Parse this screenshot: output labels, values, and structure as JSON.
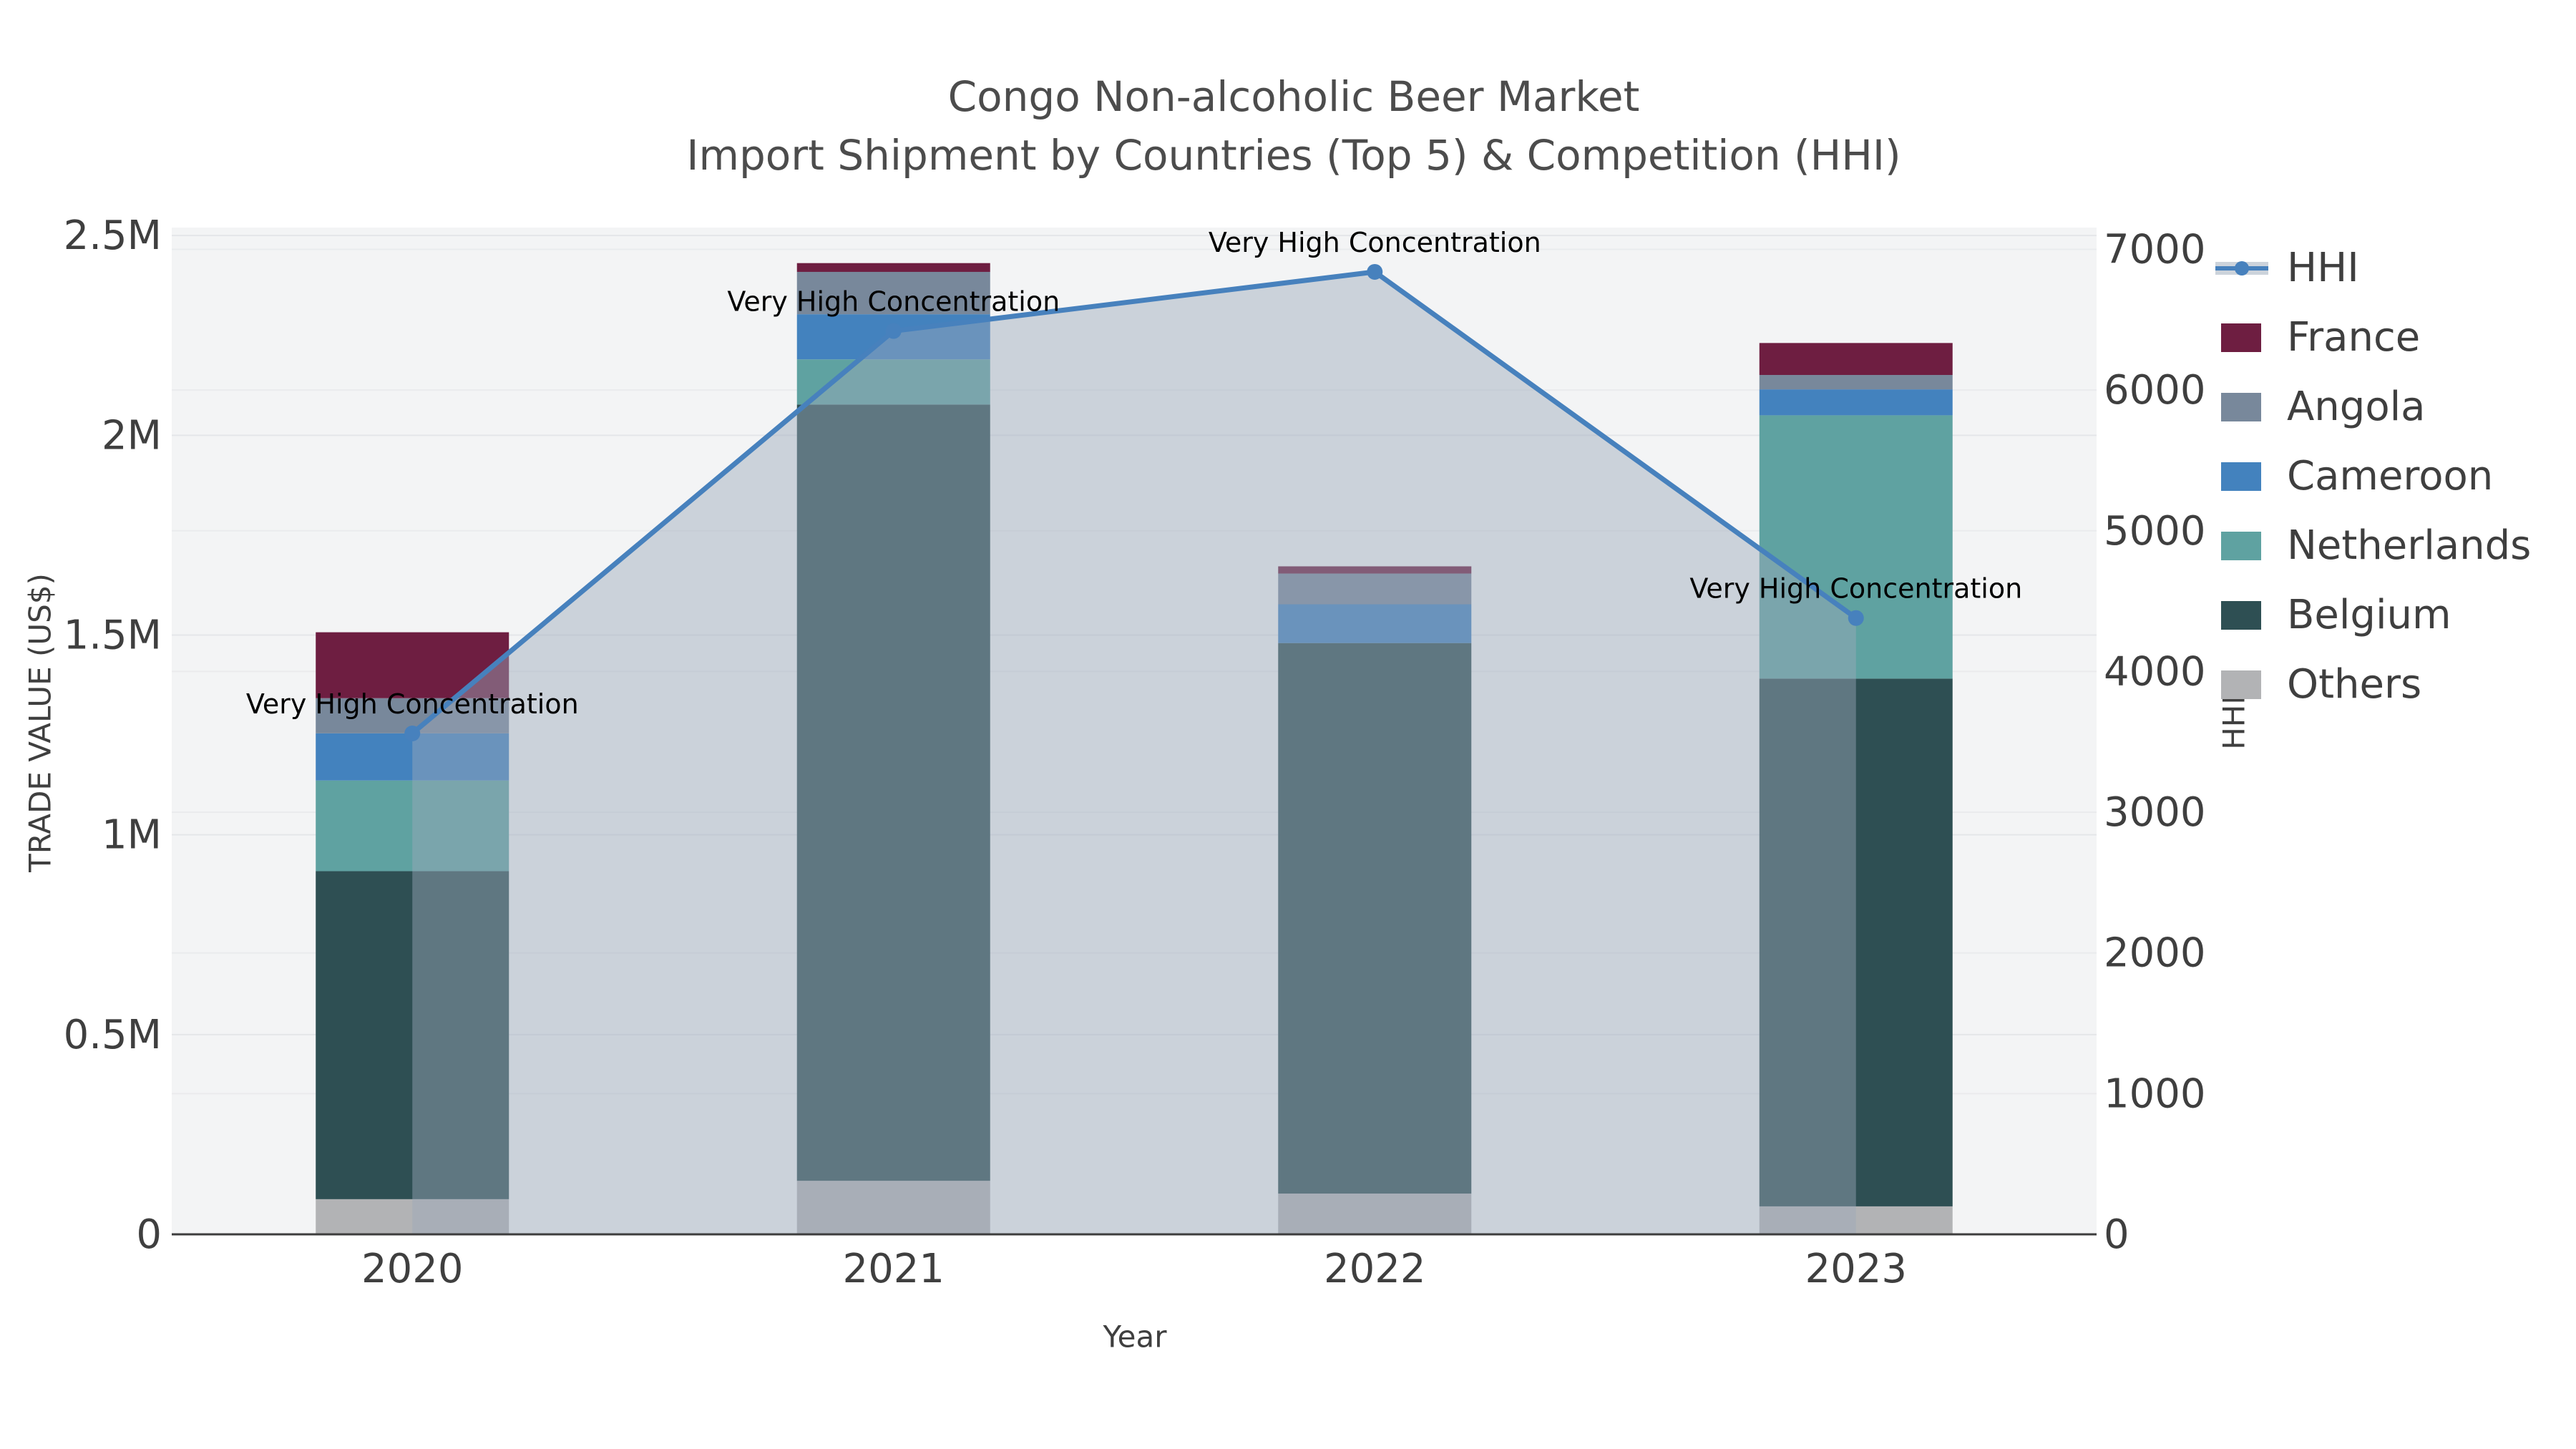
{
  "chart_data": {
    "type": "bar",
    "combo": "stacked-bar + line-with-area (secondary axis)",
    "title": "Congo Non-alcoholic Beer Market",
    "subtitle": "Import Shipment by Countries (Top 5) & Competition (HHI)",
    "xlabel": "Year",
    "ylabel_left": "TRADE VALUE (US$)",
    "ylabel_right": "HHI",
    "categories": [
      "2020",
      "2021",
      "2022",
      "2023"
    ],
    "series": [
      {
        "name": "Others",
        "values": [
          88000,
          134000,
          102000,
          70000
        ],
        "color": "#b2b3b5"
      },
      {
        "name": "Belgium",
        "values": [
          821000,
          1943000,
          1378000,
          1321000
        ],
        "color": "#2e4f53"
      },
      {
        "name": "Netherlands",
        "values": [
          227000,
          113000,
          0,
          659000
        ],
        "color": "#5fa2a1"
      },
      {
        "name": "Cameroon",
        "values": [
          118000,
          113000,
          97000,
          65000
        ],
        "color": "#4382be"
      },
      {
        "name": "Angola",
        "values": [
          88000,
          106000,
          77000,
          36000
        ],
        "color": "#78889b"
      },
      {
        "name": "France",
        "values": [
          165000,
          22000,
          18000,
          80000
        ],
        "color": "#6e1e41"
      }
    ],
    "bar_totals": [
      1507000,
      2431000,
      1672000,
      2231000
    ],
    "hhi_series": {
      "name": "HHI",
      "axis": "right",
      "values": [
        3560,
        6420,
        6840,
        4380
      ],
      "line_color": "#4781bd",
      "area_fill": "rgba(156,169,187,0.45)"
    },
    "annotations": [
      {
        "text": "Very High Concentration",
        "category": "2020"
      },
      {
        "text": "Very High Concentration",
        "category": "2021"
      },
      {
        "text": "Very High Concentration",
        "category": "2022"
      },
      {
        "text": "Very High Concentration",
        "category": "2023"
      }
    ],
    "ylim_left": [
      0,
      2520000
    ],
    "ylim_right": [
      0,
      7155
    ],
    "yticks_left_labels": [
      "0",
      "0.5M",
      "1M",
      "1.5M",
      "2M",
      "2.5M"
    ],
    "yticks_left_values": [
      0,
      500000,
      1000000,
      1500000,
      2000000,
      2500000
    ],
    "yticks_right_labels": [
      "0",
      "1000",
      "2000",
      "3000",
      "4000",
      "5000",
      "6000",
      "7000"
    ],
    "yticks_right_values": [
      0,
      1000,
      2000,
      3000,
      4000,
      5000,
      6000,
      7000
    ],
    "grid": true,
    "legend_position": "right",
    "legend_order": [
      "HHI",
      "France",
      "Angola",
      "Cameroon",
      "Netherlands",
      "Belgium",
      "Others"
    ],
    "plot_bg_color": "#f3f4f5",
    "gridline_color_left": "#e4e6e9",
    "gridline_color_right": "#eaebed",
    "axis_line_color": "#3d3d3d",
    "tick_label_color": "#3f3f3f",
    "title_color": "#4c4c4c",
    "annotation_color": "#000000"
  }
}
